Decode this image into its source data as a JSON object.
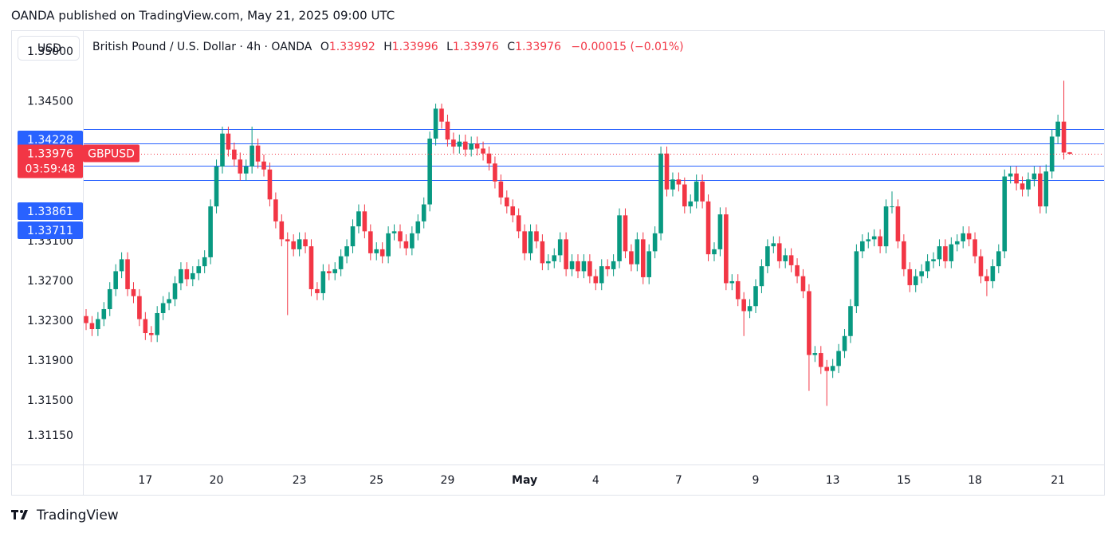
{
  "header": {
    "title": "OANDA published on TradingView.com, May 21, 2025 09:00 UTC"
  },
  "legend": {
    "name": "British Pound / U.S. Dollar · 4h · OANDA",
    "open": "O",
    "high": "H",
    "low": "L",
    "close": "C",
    "change": "−0.00015 (−0.01%)"
  },
  "footer": {
    "brand": "TradingView"
  },
  "chart_data": {
    "type": "candlestick",
    "currency": "USD",
    "symbol": "GBPUSD",
    "countdown": "03:59:48",
    "up_color": "#089981",
    "down_color": "#f23645",
    "level_color": "#2962ff",
    "levels": [
      1.34228,
      1.34078,
      1.33861,
      1.33711
    ],
    "ylim": [
      1.3087,
      1.352
    ],
    "yticks": [
      {
        "value": 1.35,
        "label": "1.35000"
      },
      {
        "value": 1.345,
        "label": "1.34500"
      },
      {
        "value": 1.331,
        "label": "1.33100"
      },
      {
        "value": 1.327,
        "label": "1.32700"
      },
      {
        "value": 1.323,
        "label": "1.32300"
      },
      {
        "value": 1.319,
        "label": "1.31900"
      },
      {
        "value": 1.315,
        "label": "1.31500"
      },
      {
        "value": 1.3115,
        "label": "1.31150"
      }
    ],
    "categories": [
      null,
      null,
      null,
      null,
      null,
      null,
      null,
      null,
      null,
      null,
      "17",
      null,
      null,
      null,
      null,
      null,
      null,
      null,
      null,
      null,
      null,
      null,
      "20",
      null,
      null,
      null,
      null,
      null,
      null,
      null,
      null,
      null,
      null,
      null,
      null,
      null,
      "23",
      null,
      null,
      null,
      null,
      null,
      null,
      null,
      null,
      null,
      null,
      null,
      null,
      "25",
      null,
      null,
      null,
      null,
      null,
      null,
      null,
      null,
      null,
      null,
      null,
      "29",
      null,
      null,
      null,
      null,
      null,
      null,
      null,
      null,
      null,
      null,
      null,
      null,
      "May",
      null,
      null,
      null,
      null,
      null,
      null,
      null,
      null,
      null,
      null,
      null,
      "4",
      null,
      null,
      null,
      null,
      null,
      null,
      null,
      null,
      null,
      null,
      null,
      null,
      null,
      "7",
      null,
      null,
      null,
      null,
      null,
      null,
      null,
      null,
      null,
      null,
      null,
      null,
      "9",
      null,
      null,
      null,
      null,
      null,
      null,
      null,
      null,
      null,
      null,
      null,
      null,
      "13",
      null,
      null,
      null,
      null,
      null,
      null,
      null,
      null,
      null,
      null,
      null,
      "15",
      null,
      null,
      null,
      null,
      null,
      null,
      null,
      null,
      null,
      null,
      null,
      "18",
      null,
      null,
      null,
      null,
      null,
      null,
      null,
      null,
      null,
      null,
      null,
      null,
      null,
      "21",
      null,
      null
    ],
    "candles": [
      [
        1.3235,
        1.3242,
        1.3221,
        1.3228
      ],
      [
        1.3228,
        1.3235,
        1.3215,
        1.3222
      ],
      [
        1.3222,
        1.3239,
        1.3215,
        1.3232
      ],
      [
        1.3232,
        1.3249,
        1.3225,
        1.3242
      ],
      [
        1.3242,
        1.3269,
        1.3235,
        1.3262
      ],
      [
        1.3262,
        1.3287,
        1.3255,
        1.328
      ],
      [
        1.328,
        1.3299,
        1.3273,
        1.3292
      ],
      [
        1.3292,
        1.3299,
        1.3255,
        1.3262
      ],
      [
        1.3262,
        1.3269,
        1.3248,
        1.3255
      ],
      [
        1.3255,
        1.3262,
        1.3225,
        1.3232
      ],
      [
        1.3232,
        1.3239,
        1.3211,
        1.3218
      ],
      [
        1.3218,
        1.3225,
        1.3209,
        1.3216
      ],
      [
        1.3216,
        1.3245,
        1.3209,
        1.3238
      ],
      [
        1.3238,
        1.3255,
        1.3231,
        1.3248
      ],
      [
        1.3248,
        1.3259,
        1.3241,
        1.3252
      ],
      [
        1.3252,
        1.3275,
        1.3245,
        1.3268
      ],
      [
        1.3268,
        1.3289,
        1.3261,
        1.3282
      ],
      [
        1.3282,
        1.3289,
        1.3265,
        1.3272
      ],
      [
        1.3272,
        1.3285,
        1.3265,
        1.3278
      ],
      [
        1.3278,
        1.3292,
        1.3271,
        1.3285
      ],
      [
        1.3285,
        1.3301,
        1.3278,
        1.3294
      ],
      [
        1.3294,
        1.3352,
        1.3287,
        1.3345
      ],
      [
        1.3345,
        1.3392,
        1.3338,
        1.3385
      ],
      [
        1.3385,
        1.3425,
        1.3378,
        1.3418
      ],
      [
        1.3418,
        1.3425,
        1.3395,
        1.3402
      ],
      [
        1.3402,
        1.3409,
        1.3385,
        1.3392
      ],
      [
        1.3392,
        1.3399,
        1.3371,
        1.3378
      ],
      [
        1.3378,
        1.3392,
        1.3371,
        1.3385
      ],
      [
        1.3385,
        1.3425,
        1.3378,
        1.3406
      ],
      [
        1.3406,
        1.3413,
        1.3383,
        1.339
      ],
      [
        1.339,
        1.3397,
        1.3375,
        1.3382
      ],
      [
        1.3382,
        1.3389,
        1.3345,
        1.3352
      ],
      [
        1.3352,
        1.3359,
        1.3323,
        1.333
      ],
      [
        1.333,
        1.3337,
        1.3305,
        1.3312
      ],
      [
        1.3312,
        1.3319,
        1.3236,
        1.331
      ],
      [
        1.331,
        1.3317,
        1.3295,
        1.3302
      ],
      [
        1.3302,
        1.3319,
        1.3295,
        1.3312
      ],
      [
        1.3312,
        1.3319,
        1.3298,
        1.3305
      ],
      [
        1.3305,
        1.3312,
        1.3255,
        1.3262
      ],
      [
        1.3262,
        1.3269,
        1.3251,
        1.3258
      ],
      [
        1.3258,
        1.3287,
        1.3251,
        1.328
      ],
      [
        1.328,
        1.3287,
        1.3271,
        1.3278
      ],
      [
        1.3278,
        1.3289,
        1.3271,
        1.3282
      ],
      [
        1.3282,
        1.3302,
        1.3275,
        1.3295
      ],
      [
        1.3295,
        1.3312,
        1.3288,
        1.3305
      ],
      [
        1.3305,
        1.3332,
        1.3298,
        1.3325
      ],
      [
        1.3325,
        1.3347,
        1.3318,
        1.334
      ],
      [
        1.334,
        1.3347,
        1.3313,
        1.332
      ],
      [
        1.332,
        1.3327,
        1.3291,
        1.3298
      ],
      [
        1.3298,
        1.3309,
        1.3291,
        1.3302
      ],
      [
        1.3302,
        1.3309,
        1.3288,
        1.3295
      ],
      [
        1.3295,
        1.3325,
        1.3288,
        1.3318
      ],
      [
        1.3318,
        1.3327,
        1.3311,
        1.332
      ],
      [
        1.332,
        1.3327,
        1.3303,
        1.331
      ],
      [
        1.331,
        1.3317,
        1.3296,
        1.3303
      ],
      [
        1.3303,
        1.3325,
        1.3296,
        1.3318
      ],
      [
        1.3318,
        1.3337,
        1.3311,
        1.333
      ],
      [
        1.333,
        1.3354,
        1.3323,
        1.3347
      ],
      [
        1.3347,
        1.342,
        1.334,
        1.3413
      ],
      [
        1.3413,
        1.3448,
        1.3406,
        1.3443
      ],
      [
        1.3443,
        1.3448,
        1.3423,
        1.343
      ],
      [
        1.343,
        1.3437,
        1.3405,
        1.3412
      ],
      [
        1.3412,
        1.3419,
        1.3398,
        1.3405
      ],
      [
        1.3405,
        1.3417,
        1.3398,
        1.341
      ],
      [
        1.341,
        1.3417,
        1.3395,
        1.3402
      ],
      [
        1.3402,
        1.3415,
        1.3395,
        1.3408
      ],
      [
        1.3408,
        1.3415,
        1.3396,
        1.3403
      ],
      [
        1.3403,
        1.341,
        1.3391,
        1.3398
      ],
      [
        1.3398,
        1.3405,
        1.3381,
        1.3388
      ],
      [
        1.3388,
        1.3395,
        1.3363,
        1.337
      ],
      [
        1.337,
        1.3377,
        1.3347,
        1.3354
      ],
      [
        1.3354,
        1.3361,
        1.3338,
        1.3345
      ],
      [
        1.3345,
        1.3352,
        1.3329,
        1.3336
      ],
      [
        1.3336,
        1.3343,
        1.3313,
        1.332
      ],
      [
        1.332,
        1.3327,
        1.3291,
        1.3298
      ],
      [
        1.3298,
        1.3327,
        1.3291,
        1.332
      ],
      [
        1.332,
        1.3327,
        1.3303,
        1.331
      ],
      [
        1.331,
        1.3317,
        1.3281,
        1.3288
      ],
      [
        1.3288,
        1.3297,
        1.3281,
        1.329
      ],
      [
        1.329,
        1.3303,
        1.3283,
        1.3296
      ],
      [
        1.3296,
        1.3319,
        1.3289,
        1.3312
      ],
      [
        1.3312,
        1.3319,
        1.3275,
        1.3282
      ],
      [
        1.3282,
        1.3297,
        1.3275,
        1.329
      ],
      [
        1.329,
        1.3297,
        1.3273,
        1.328
      ],
      [
        1.328,
        1.3297,
        1.3273,
        1.329
      ],
      [
        1.329,
        1.3297,
        1.3268,
        1.3275
      ],
      [
        1.3275,
        1.3282,
        1.3261,
        1.3268
      ],
      [
        1.3268,
        1.3292,
        1.3261,
        1.3285
      ],
      [
        1.3285,
        1.3292,
        1.3275,
        1.3282
      ],
      [
        1.3282,
        1.3297,
        1.3275,
        1.329
      ],
      [
        1.329,
        1.3343,
        1.3283,
        1.3336
      ],
      [
        1.3336,
        1.3343,
        1.3293,
        1.33
      ],
      [
        1.33,
        1.3307,
        1.328,
        1.3287
      ],
      [
        1.3287,
        1.3319,
        1.328,
        1.3312
      ],
      [
        1.3312,
        1.3319,
        1.3267,
        1.3274
      ],
      [
        1.3274,
        1.3307,
        1.3267,
        1.33
      ],
      [
        1.33,
        1.3325,
        1.3293,
        1.3318
      ],
      [
        1.3318,
        1.3405,
        1.3311,
        1.3398
      ],
      [
        1.3398,
        1.3405,
        1.3355,
        1.3362
      ],
      [
        1.3362,
        1.3379,
        1.3355,
        1.3372
      ],
      [
        1.3372,
        1.3379,
        1.336,
        1.3367
      ],
      [
        1.3367,
        1.3374,
        1.3338,
        1.3345
      ],
      [
        1.3345,
        1.3357,
        1.3338,
        1.335
      ],
      [
        1.335,
        1.3377,
        1.3343,
        1.337
      ],
      [
        1.337,
        1.3377,
        1.3343,
        1.335
      ],
      [
        1.335,
        1.3357,
        1.329,
        1.3297
      ],
      [
        1.3297,
        1.3309,
        1.329,
        1.3302
      ],
      [
        1.3302,
        1.3344,
        1.3295,
        1.3337
      ],
      [
        1.3337,
        1.3344,
        1.3261,
        1.3268
      ],
      [
        1.3268,
        1.3277,
        1.3261,
        1.327
      ],
      [
        1.327,
        1.3277,
        1.3245,
        1.3252
      ],
      [
        1.3252,
        1.3259,
        1.3215,
        1.324
      ],
      [
        1.324,
        1.3252,
        1.3233,
        1.3245
      ],
      [
        1.3245,
        1.3272,
        1.3238,
        1.3265
      ],
      [
        1.3265,
        1.3292,
        1.3258,
        1.3285
      ],
      [
        1.3285,
        1.3312,
        1.3278,
        1.3305
      ],
      [
        1.3305,
        1.3315,
        1.3298,
        1.3308
      ],
      [
        1.3308,
        1.3315,
        1.3283,
        1.329
      ],
      [
        1.329,
        1.3303,
        1.3283,
        1.3296
      ],
      [
        1.3296,
        1.3303,
        1.3279,
        1.3286
      ],
      [
        1.3286,
        1.3293,
        1.3268,
        1.3275
      ],
      [
        1.3275,
        1.3282,
        1.3253,
        1.326
      ],
      [
        1.326,
        1.3267,
        1.316,
        1.3196
      ],
      [
        1.3196,
        1.3205,
        1.3189,
        1.3198
      ],
      [
        1.3198,
        1.3205,
        1.3177,
        1.3184
      ],
      [
        1.3184,
        1.3191,
        1.3145,
        1.318
      ],
      [
        1.318,
        1.3192,
        1.3173,
        1.3185
      ],
      [
        1.3185,
        1.3207,
        1.3178,
        1.32
      ],
      [
        1.32,
        1.3222,
        1.3193,
        1.3215
      ],
      [
        1.3215,
        1.3252,
        1.3208,
        1.3245
      ],
      [
        1.3245,
        1.3307,
        1.3238,
        1.33
      ],
      [
        1.33,
        1.3317,
        1.3293,
        1.331
      ],
      [
        1.331,
        1.3319,
        1.3303,
        1.3312
      ],
      [
        1.3312,
        1.3322,
        1.3305,
        1.3315
      ],
      [
        1.3315,
        1.3322,
        1.3298,
        1.3305
      ],
      [
        1.3305,
        1.3352,
        1.3298,
        1.3345
      ],
      [
        1.3345,
        1.336,
        1.3338,
        1.3345
      ],
      [
        1.3345,
        1.3352,
        1.3303,
        1.331
      ],
      [
        1.331,
        1.3317,
        1.3275,
        1.3282
      ],
      [
        1.3282,
        1.3289,
        1.3259,
        1.3266
      ],
      [
        1.3266,
        1.3282,
        1.3259,
        1.3275
      ],
      [
        1.3275,
        1.3287,
        1.3268,
        1.328
      ],
      [
        1.328,
        1.3297,
        1.3273,
        1.329
      ],
      [
        1.329,
        1.3299,
        1.3283,
        1.3292
      ],
      [
        1.3292,
        1.3312,
        1.3285,
        1.3305
      ],
      [
        1.3305,
        1.3312,
        1.3283,
        1.329
      ],
      [
        1.329,
        1.3314,
        1.3283,
        1.3307
      ],
      [
        1.3307,
        1.3317,
        1.33,
        1.331
      ],
      [
        1.331,
        1.3325,
        1.3303,
        1.3318
      ],
      [
        1.3318,
        1.3325,
        1.3305,
        1.3312
      ],
      [
        1.3312,
        1.3319,
        1.3288,
        1.3295
      ],
      [
        1.3295,
        1.3302,
        1.3268,
        1.3275
      ],
      [
        1.3275,
        1.3282,
        1.3255,
        1.327
      ],
      [
        1.327,
        1.3292,
        1.3263,
        1.3285
      ],
      [
        1.3285,
        1.3307,
        1.3278,
        1.33
      ],
      [
        1.33,
        1.3382,
        1.3293,
        1.3375
      ],
      [
        1.3375,
        1.3385,
        1.3368,
        1.3378
      ],
      [
        1.3378,
        1.3385,
        1.3361,
        1.3368
      ],
      [
        1.3368,
        1.3375,
        1.3355,
        1.3362
      ],
      [
        1.3362,
        1.3379,
        1.3355,
        1.3372
      ],
      [
        1.3372,
        1.3385,
        1.3365,
        1.3378
      ],
      [
        1.3378,
        1.3385,
        1.3338,
        1.3345
      ],
      [
        1.3345,
        1.3387,
        1.3338,
        1.338
      ],
      [
        1.338,
        1.3422,
        1.3373,
        1.3415
      ],
      [
        1.3415,
        1.3437,
        1.3408,
        1.343
      ],
      [
        1.343,
        1.3471,
        1.3392,
        1.3399
      ],
      [
        1.33992,
        1.33996,
        1.33976,
        1.33976
      ]
    ]
  }
}
